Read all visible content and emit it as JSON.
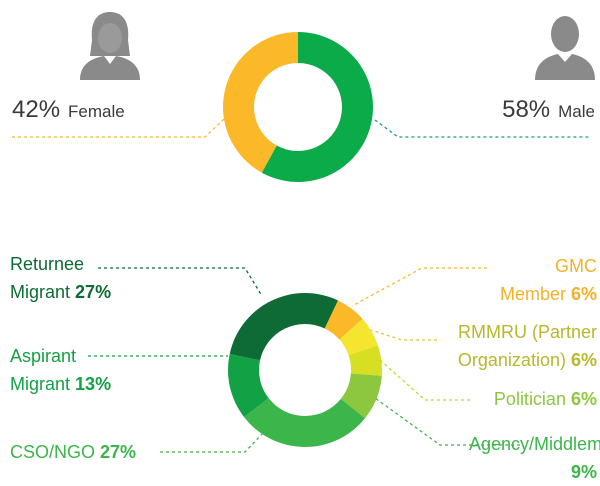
{
  "chart_data": [
    {
      "type": "donut",
      "categories": [
        "Female",
        "Male"
      ],
      "values": [
        42,
        58
      ],
      "value_labels": [
        "42%",
        "58%"
      ],
      "colors": [
        "#fbb829",
        "#0bab4a"
      ]
    },
    {
      "type": "donut",
      "categories": [
        "Returnee Migrant",
        "GMC Member",
        "RMMRU (Partner Organization)",
        "Politician",
        "Agency/Middleman",
        "CSO/NGO",
        "Aspirant Migrant"
      ],
      "values": [
        27,
        6,
        6,
        6,
        9,
        27,
        13
      ],
      "value_labels": [
        "27%",
        "6%",
        "6%",
        "6%",
        "9%",
        "27%",
        "13%"
      ],
      "colors": [
        "#0e6b35",
        "#fbb829",
        "#f6e52f",
        "#d7df23",
        "#8dc63f",
        "#3cb54a",
        "#13a145"
      ]
    }
  ]
}
